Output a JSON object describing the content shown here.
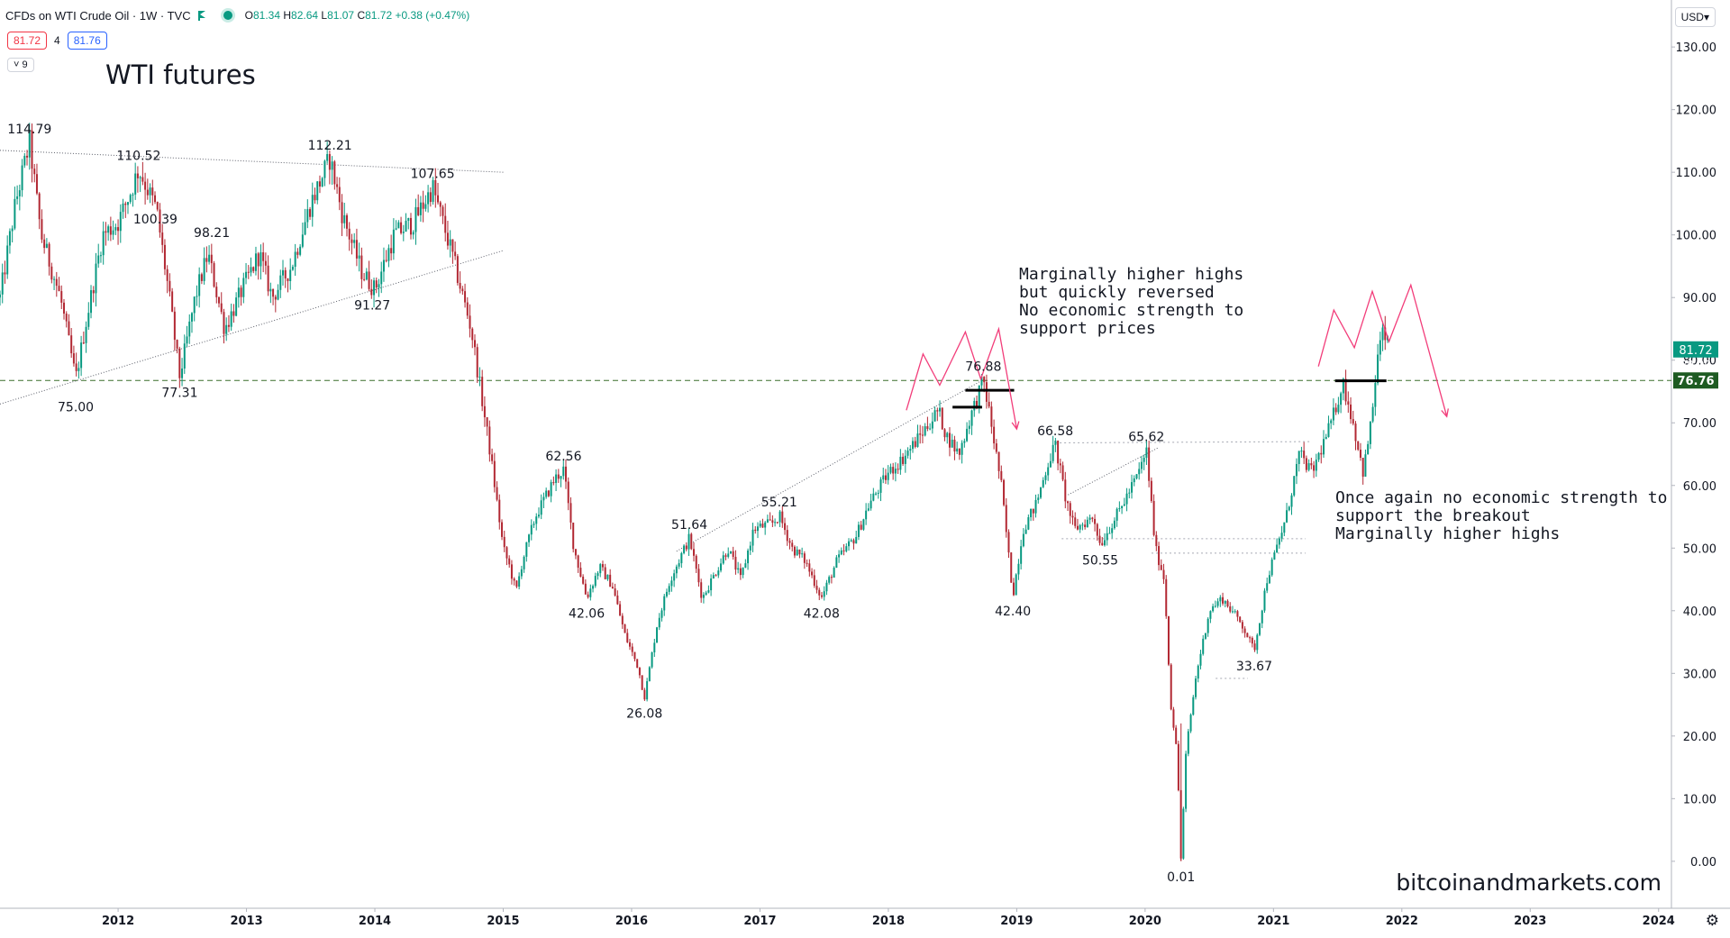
{
  "header": {
    "symbol": "CFDs on WTI Crude Oil · 1W · TVC",
    "ohlc": [
      {
        "label": "O",
        "value": "81.34"
      },
      {
        "label": "H",
        "value": "82.64"
      },
      {
        "label": "L",
        "value": "81.07"
      },
      {
        "label": "C",
        "value": "81.72"
      },
      {
        "label": "",
        "value": "+0.38 (+0.47%)"
      }
    ],
    "bid": "81.72",
    "spread": "4",
    "ask": "81.76",
    "collapse_label": "˅ 9",
    "currency": "USD▾"
  },
  "title": "WTI futures",
  "watermark": "bitcoinandmarkets.com",
  "annotations": [
    "Marginally higher highs\nbut quickly reversed\nNo economic strength to\nsupport prices",
    "Once again no economic strength to\nsupport the breakout\nMarginally higher highs"
  ],
  "colors": {
    "up": "#089981",
    "down": "#b22833",
    "accent": "#f23d7a",
    "price_tag": "#089981",
    "level_tag": "#1e5b22"
  },
  "chart_data": {
    "type": "candlestick",
    "interval": "1W",
    "ylim": [
      -7.5,
      137.5
    ],
    "xlim": [
      2011.08,
      2024.1
    ],
    "yticks": [
      0,
      10,
      20,
      30,
      40,
      50,
      60,
      70,
      80,
      90,
      100,
      110,
      120,
      130
    ],
    "ytick_labels": [
      "0.00",
      "10.00",
      "20.00",
      "30.00",
      "40.00",
      "50.00",
      "60.00",
      "70.00",
      "80.00",
      "90.00",
      "100.00",
      "110.00",
      "120.00",
      "130.00"
    ],
    "xticks": [
      "2012",
      "2013",
      "2014",
      "2015",
      "2016",
      "2017",
      "2018",
      "2019",
      "2020",
      "2021",
      "2022",
      "2023",
      "2024"
    ],
    "price_path": [
      [
        2011.08,
        90
      ],
      [
        2011.2,
        105
      ],
      [
        2011.31,
        114.79
      ],
      [
        2011.4,
        100
      ],
      [
        2011.55,
        90
      ],
      [
        2011.67,
        77
      ],
      [
        2011.75,
        86
      ],
      [
        2011.88,
        100
      ],
      [
        2012.0,
        102
      ],
      [
        2012.1,
        107
      ],
      [
        2012.16,
        110.52
      ],
      [
        2012.3,
        104
      ],
      [
        2012.4,
        90
      ],
      [
        2012.48,
        77.31
      ],
      [
        2012.6,
        90
      ],
      [
        2012.7,
        97
      ],
      [
        2012.83,
        85
      ],
      [
        2012.96,
        91
      ],
      [
        2013.1,
        97
      ],
      [
        2013.2,
        90
      ],
      [
        2013.35,
        95
      ],
      [
        2013.5,
        105
      ],
      [
        2013.65,
        112.21
      ],
      [
        2013.75,
        103
      ],
      [
        2013.9,
        94
      ],
      [
        2014.0,
        91.27
      ],
      [
        2014.15,
        100
      ],
      [
        2014.3,
        102
      ],
      [
        2014.45,
        107.65
      ],
      [
        2014.6,
        97
      ],
      [
        2014.75,
        85
      ],
      [
        2014.9,
        65
      ],
      [
        2015.0,
        50
      ],
      [
        2015.05,
        47
      ],
      [
        2015.1,
        43
      ],
      [
        2015.15,
        48
      ],
      [
        2015.25,
        55
      ],
      [
        2015.4,
        61
      ],
      [
        2015.47,
        62.56
      ],
      [
        2015.55,
        50
      ],
      [
        2015.65,
        42.06
      ],
      [
        2015.75,
        47
      ],
      [
        2015.85,
        44
      ],
      [
        2015.95,
        36
      ],
      [
        2016.05,
        31
      ],
      [
        2016.1,
        26.08
      ],
      [
        2016.2,
        38
      ],
      [
        2016.3,
        45
      ],
      [
        2016.45,
        51.64
      ],
      [
        2016.55,
        42
      ],
      [
        2016.65,
        46
      ],
      [
        2016.75,
        50
      ],
      [
        2016.85,
        45
      ],
      [
        2016.95,
        53
      ],
      [
        2017.1,
        54
      ],
      [
        2017.15,
        55.21
      ],
      [
        2017.25,
        50
      ],
      [
        2017.35,
        48
      ],
      [
        2017.48,
        42.08
      ],
      [
        2017.6,
        48
      ],
      [
        2017.75,
        52
      ],
      [
        2017.85,
        57
      ],
      [
        2018.0,
        62
      ],
      [
        2018.1,
        64
      ],
      [
        2018.25,
        68
      ],
      [
        2018.39,
        72
      ],
      [
        2018.45,
        68
      ],
      [
        2018.55,
        65
      ],
      [
        2018.64,
        71
      ],
      [
        2018.74,
        76.88
      ],
      [
        2018.8,
        70
      ],
      [
        2018.88,
        60
      ],
      [
        2018.97,
        42.4
      ],
      [
        2019.05,
        53
      ],
      [
        2019.15,
        57
      ],
      [
        2019.25,
        64
      ],
      [
        2019.3,
        66.58
      ],
      [
        2019.38,
        58
      ],
      [
        2019.45,
        53
      ],
      [
        2019.6,
        55
      ],
      [
        2019.65,
        50.55
      ],
      [
        2019.8,
        56
      ],
      [
        2019.95,
        62
      ],
      [
        2020.01,
        65.62
      ],
      [
        2020.08,
        50
      ],
      [
        2020.15,
        45
      ],
      [
        2020.2,
        25
      ],
      [
        2020.25,
        17
      ],
      [
        2020.28,
        0.01
      ],
      [
        2020.32,
        18
      ],
      [
        2020.4,
        30
      ],
      [
        2020.5,
        40
      ],
      [
        2020.6,
        42
      ],
      [
        2020.75,
        38
      ],
      [
        2020.85,
        33.67
      ],
      [
        2020.95,
        45
      ],
      [
        2021.1,
        55
      ],
      [
        2021.2,
        65
      ],
      [
        2021.3,
        62
      ],
      [
        2021.45,
        70
      ],
      [
        2021.54,
        76.5
      ],
      [
        2021.62,
        70
      ],
      [
        2021.7,
        62
      ],
      [
        2021.76,
        70
      ],
      [
        2021.82,
        82
      ],
      [
        2021.86,
        84.5
      ],
      [
        2021.9,
        81.72
      ]
    ],
    "labels": [
      {
        "t": 2011.31,
        "v": 114.79,
        "text": "114.79",
        "pos": "above"
      },
      {
        "t": 2012.16,
        "v": 110.52,
        "text": "110.52",
        "pos": "above"
      },
      {
        "t": 2013.65,
        "v": 112.21,
        "text": "112.21",
        "pos": "above"
      },
      {
        "t": 2014.45,
        "v": 107.65,
        "text": "107.65",
        "pos": "above"
      },
      {
        "t": 2012.73,
        "v": 98.21,
        "text": "98.21",
        "pos": "above"
      },
      {
        "t": 2012.29,
        "v": 100.39,
        "text": "100.39",
        "pos": "above"
      },
      {
        "t": 2013.98,
        "v": 91.27,
        "text": "91.27",
        "pos": "below"
      },
      {
        "t": 2011.67,
        "v": 75.0,
        "text": "75.00",
        "pos": "below"
      },
      {
        "t": 2012.48,
        "v": 77.31,
        "text": "77.31",
        "pos": "below"
      },
      {
        "t": 2015.47,
        "v": 62.56,
        "text": "62.56",
        "pos": "above"
      },
      {
        "t": 2015.65,
        "v": 42.06,
        "text": "42.06",
        "pos": "below"
      },
      {
        "t": 2016.1,
        "v": 26.08,
        "text": "26.08",
        "pos": "below"
      },
      {
        "t": 2016.45,
        "v": 51.64,
        "text": "51.64",
        "pos": "above"
      },
      {
        "t": 2017.15,
        "v": 55.21,
        "text": "55.21",
        "pos": "above"
      },
      {
        "t": 2017.48,
        "v": 42.08,
        "text": "42.08",
        "pos": "below"
      },
      {
        "t": 2018.74,
        "v": 76.88,
        "text": "76.88",
        "pos": "above"
      },
      {
        "t": 2018.97,
        "v": 42.4,
        "text": "42.40",
        "pos": "below"
      },
      {
        "t": 2019.3,
        "v": 66.58,
        "text": "66.58",
        "pos": "above"
      },
      {
        "t": 2019.65,
        "v": 50.55,
        "text": "50.55",
        "pos": "below"
      },
      {
        "t": 2020.01,
        "v": 65.62,
        "text": "65.62",
        "pos": "above"
      },
      {
        "t": 2020.28,
        "v": 0.01,
        "text": "0.01",
        "pos": "below"
      },
      {
        "t": 2020.85,
        "v": 33.67,
        "text": "33.67",
        "pos": "below"
      }
    ],
    "trendlines": [
      {
        "style": "dotted",
        "from": [
          2011.08,
          113.5
        ],
        "to": [
          2015.0,
          110.0
        ]
      },
      {
        "style": "dotted",
        "from": [
          2011.08,
          73.0
        ],
        "to": [
          2015.0,
          97.5
        ]
      },
      {
        "style": "dotted",
        "from": [
          2016.35,
          49.5
        ],
        "to": [
          2018.75,
          77.0
        ]
      },
      {
        "style": "dotted",
        "from": [
          2019.4,
          58.5
        ],
        "to": [
          2020.1,
          66.0
        ]
      },
      {
        "style": "dotted-gray",
        "from": [
          2019.3,
          66.8
        ],
        "to": [
          2021.3,
          67.0
        ]
      },
      {
        "style": "dotted-gray",
        "from": [
          2019.35,
          51.5
        ],
        "to": [
          2021.25,
          51.5
        ]
      },
      {
        "style": "dotted-gray",
        "from": [
          2020.05,
          49.2
        ],
        "to": [
          2021.25,
          49.2
        ]
      },
      {
        "style": "dotted-gray",
        "from": [
          2020.55,
          29.2
        ],
        "to": [
          2020.8,
          29.2
        ]
      }
    ],
    "marker_lines": [
      {
        "from": [
          2018.5,
          72.5
        ],
        "to": [
          2018.73,
          72.5
        ]
      },
      {
        "from": [
          2018.6,
          75.2
        ],
        "to": [
          2018.98,
          75.2
        ]
      },
      {
        "from": [
          2021.48,
          76.7
        ],
        "to": [
          2021.88,
          76.7
        ]
      }
    ],
    "projections": [
      [
        [
          2018.14,
          72
        ],
        [
          2018.27,
          81
        ],
        [
          2018.4,
          76
        ],
        [
          2018.6,
          84.5
        ],
        [
          2018.72,
          77
        ],
        [
          2018.86,
          85
        ],
        [
          2019.0,
          69
        ]
      ],
      [
        [
          2021.35,
          79
        ],
        [
          2021.47,
          88
        ],
        [
          2021.63,
          82
        ],
        [
          2021.77,
          91
        ],
        [
          2021.9,
          83
        ],
        [
          2022.07,
          92
        ],
        [
          2022.35,
          71
        ]
      ]
    ],
    "current_price": {
      "value": 81.72,
      "label": "81.72",
      "secondary_label": "80.00"
    },
    "level": {
      "value": 76.76,
      "label": "76.76"
    }
  }
}
